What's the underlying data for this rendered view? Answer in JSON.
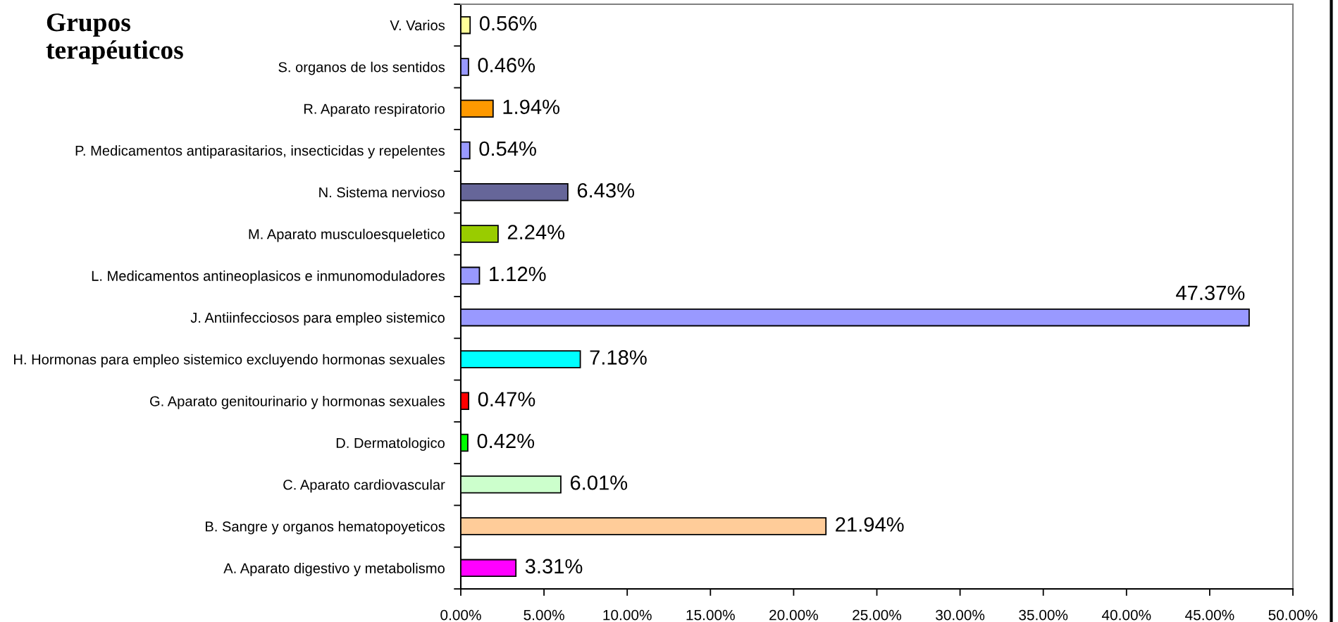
{
  "chart_data": {
    "type": "bar",
    "orientation": "horizontal",
    "title": "Grupos terapéuticos",
    "categories": [
      "V. Varios",
      "S. organos de los sentidos",
      "R. Aparato respiratorio",
      "P. Medicamentos antiparasitarios, insecticidas y repelentes",
      "N. Sistema nervioso",
      "M. Aparato musculoesqueletico",
      "L. Medicamentos antineoplasicos e inmunomoduladores",
      "J. Antiinfecciosos para empleo sistemico",
      "H. Hormonas para empleo sistemico excluyendo hormonas sexuales",
      "G. Aparato genitourinario y hormonas sexuales",
      "D. Dermatologico",
      "C. Aparato cardiovascular",
      "B. Sangre y organos hematopoyeticos",
      "A. Aparato digestivo y metabolismo"
    ],
    "values": [
      0.56,
      0.46,
      1.94,
      0.54,
      6.43,
      2.24,
      1.12,
      47.37,
      7.18,
      0.47,
      0.42,
      6.01,
      21.94,
      3.31
    ],
    "colors": [
      "#ffff99",
      "#9999ff",
      "#ff9900",
      "#9999ff",
      "#666699",
      "#99cc00",
      "#9999ff",
      "#9999ff",
      "#00ffff",
      "#ff0000",
      "#00ff00",
      "#ccffcc",
      "#ffcc99",
      "#ff00ff"
    ],
    "value_labels": [
      "0.56%",
      "0.46%",
      "1.94%",
      "0.54%",
      "6.43%",
      "2.24%",
      "1.12%",
      "47.37%",
      "7.18%",
      "0.47%",
      "0.42%",
      "6.01%",
      "21.94%",
      "3.31%"
    ],
    "xlim": [
      0,
      50
    ],
    "xticks": [
      {
        "value": 0,
        "label": "0.00%"
      },
      {
        "value": 5,
        "label": "5.00%"
      },
      {
        "value": 10,
        "label": "10.00%"
      },
      {
        "value": 15,
        "label": "15.00%"
      },
      {
        "value": 20,
        "label": "20.00%"
      },
      {
        "value": 25,
        "label": "25.00%"
      },
      {
        "value": 30,
        "label": "30.00%"
      },
      {
        "value": 35,
        "label": "35.00%"
      },
      {
        "value": 40,
        "label": "40.00%"
      },
      {
        "value": 45,
        "label": "45.00%"
      },
      {
        "value": 50,
        "label": "50.00%"
      }
    ]
  }
}
